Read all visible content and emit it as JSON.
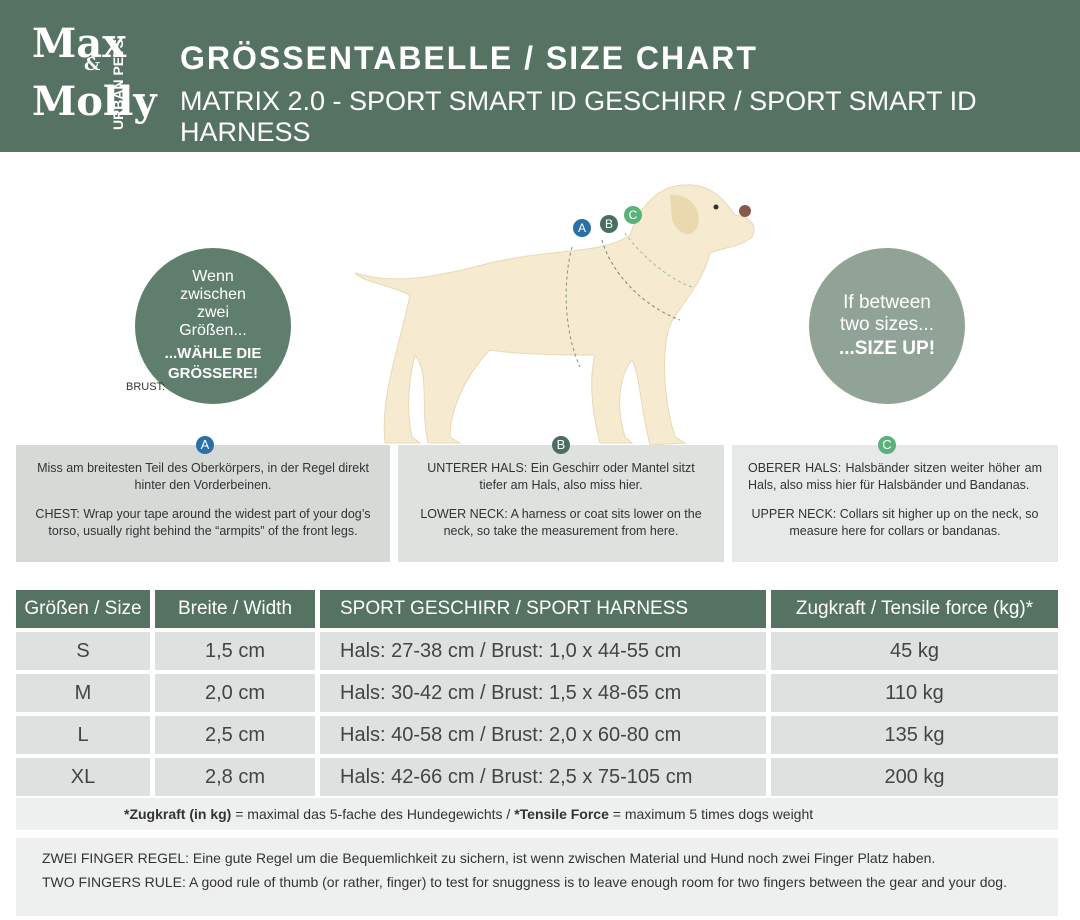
{
  "header": {
    "logo": {
      "top": "Max",
      "ampersand": "&",
      "bottom": "Molly",
      "tagline": "URBAN PETS"
    },
    "title": "GRÖSSENTABELLE / SIZE CHART",
    "subtitle": "MATRIX 2.0 - SPORT SMART ID GESCHIRR / SPORT SMART ID HARNESS"
  },
  "diagram": {
    "markers": [
      "A",
      "B",
      "C"
    ],
    "chest_label": "BRUST:"
  },
  "bubbles": [
    {
      "text": "Wenn zwischen zwei Größen...",
      "emphasis": "...WÄHLE DIE GRÖSSERE!"
    },
    {
      "text": "If between two sizes...",
      "emphasis": "...SIZE UP!"
    }
  ],
  "panels": [
    {
      "letter": "A",
      "de_label": null,
      "de_text": "Miss am breitesten Teil des Oberkörpers, in der Regel direkt hinter den Vorderbeinen.",
      "en_text": "CHEST: Wrap your tape around the widest part of your dog’s torso, usually right behind the “armpits” of the front legs."
    },
    {
      "letter": "B",
      "de_label": "UNTERER HALS:",
      "de_text": "Ein Geschirr oder Mantel sitzt tiefer am Hals, also miss hier.",
      "en_text": "LOWER NECK: A harness or coat sits lower on the neck, so take the measurement from here."
    },
    {
      "letter": "C",
      "de_label": "OBERER HALS:",
      "de_text": "Halsbänder sitzen weiter höher am Hals, also miss hier für Halsbänder und Bandanas.",
      "en_text": "UPPER NECK: Collars sit higher up on the neck, so measure here for collars or bandanas."
    }
  ],
  "table": {
    "headers": [
      "Größen / Size",
      "Breite / Width",
      "SPORT GESCHIRR / SPORT HARNESS",
      "Zugkraft / Tensile force (kg)*"
    ],
    "rows": [
      [
        "S",
        "1,5 cm",
        "Hals: 27-38 cm / Brust: 1,0 x 44-55 cm",
        "45 kg"
      ],
      [
        "M",
        "2,0 cm",
        "Hals: 30-42 cm / Brust: 1,5 x 48-65 cm",
        "110 kg"
      ],
      [
        "L",
        "2,5 cm",
        "Hals: 40-58 cm / Brust: 2,0 x 60-80 cm",
        "135 kg"
      ],
      [
        "XL",
        "2,8 cm",
        "Hals: 42-66 cm / Brust: 2,5 x 75-105 cm",
        "200 kg"
      ]
    ]
  },
  "footnote": {
    "de_term": "*Zugkraft (in kg)",
    "de_text": " = maximal das 5-fache des Hundegewichts / ",
    "en_term": "*Tensile Force",
    "en_text": " = maximum 5 times dogs weight"
  },
  "rules": [
    {
      "label": "ZWEI FINGER REGEL:",
      "text": "Eine gute Regel um die Bequemlichkeit zu sichern, ist wenn zwischen Material und Hund noch zwei Finger Platz haben."
    },
    {
      "label": "TWO FINGERS RULE:",
      "text": "A good rule of thumb (or rather, finger) to test for snuggness is to leave enough room for two fingers between the gear and your dog."
    }
  ]
}
